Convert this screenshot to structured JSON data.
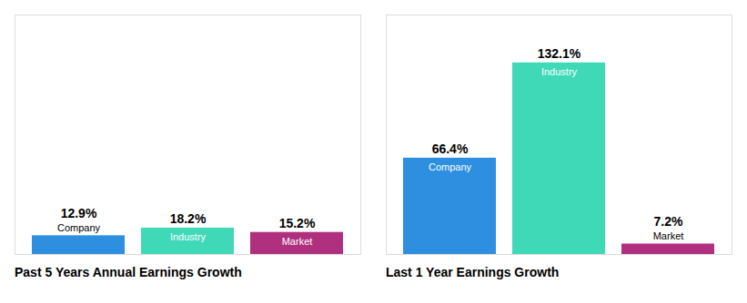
{
  "chart_data": [
    {
      "type": "bar",
      "title": "Past 5 Years Annual Earnings Growth",
      "categories": [
        "Company",
        "Industry",
        "Market"
      ],
      "values": [
        12.9,
        18.2,
        15.2
      ],
      "value_labels": [
        "12.9%",
        "18.2%",
        "15.2%"
      ],
      "colors": [
        "#2e8fe0",
        "#40d9b8",
        "#b03080"
      ],
      "ylim": [
        0,
        165.125
      ],
      "data_labels": true,
      "tick_labels": false,
      "grid": false
    },
    {
      "type": "bar",
      "title": "Last 1 Year Earnings Growth",
      "categories": [
        "Company",
        "Industry",
        "Market"
      ],
      "values": [
        66.4,
        132.1,
        7.2
      ],
      "value_labels": [
        "66.4%",
        "132.1%",
        "7.2%"
      ],
      "colors": [
        "#2e8fe0",
        "#40d9b8",
        "#b03080"
      ],
      "ylim": [
        0,
        165.125
      ],
      "data_labels": true,
      "tick_labels": false,
      "grid": false
    }
  ]
}
